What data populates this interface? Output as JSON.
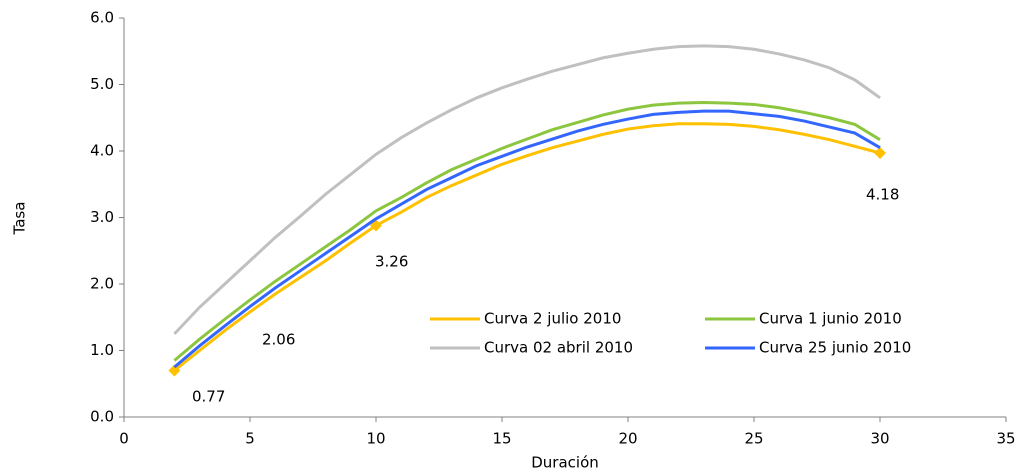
{
  "chart_data": {
    "type": "line",
    "x_label": "Duración",
    "y_label": "Tasa",
    "x": [
      2,
      3,
      4,
      5,
      6,
      7,
      8,
      9,
      10,
      11,
      12,
      13,
      14,
      15,
      16,
      17,
      18,
      19,
      20,
      21,
      22,
      23,
      24,
      25,
      26,
      27,
      28,
      29,
      30
    ],
    "series": [
      {
        "name": "Curva 2 julio 2010",
        "color": "#ffc000",
        "markers_at": [
          2,
          10,
          30
        ],
        "values": [
          0.7,
          1.0,
          1.3,
          1.58,
          1.85,
          2.1,
          2.35,
          2.62,
          2.88,
          3.08,
          3.3,
          3.48,
          3.64,
          3.8,
          3.93,
          4.05,
          4.15,
          4.25,
          4.33,
          4.38,
          4.41,
          4.41,
          4.4,
          4.37,
          4.32,
          4.25,
          4.17,
          4.07,
          3.97
        ]
      },
      {
        "name": "Curva 1 junio 2010",
        "color": "#8cc63f",
        "values": [
          0.85,
          1.17,
          1.47,
          1.76,
          2.04,
          2.3,
          2.56,
          2.82,
          3.1,
          3.3,
          3.52,
          3.72,
          3.88,
          4.04,
          4.18,
          4.32,
          4.43,
          4.54,
          4.63,
          4.69,
          4.72,
          4.73,
          4.72,
          4.7,
          4.65,
          4.58,
          4.5,
          4.4,
          4.17
        ]
      },
      {
        "name": "Curva 02 abril 2010",
        "color": "#c0c0c0",
        "values": [
          1.25,
          1.65,
          2.0,
          2.35,
          2.7,
          3.02,
          3.35,
          3.65,
          3.95,
          4.2,
          4.42,
          4.62,
          4.8,
          4.95,
          5.08,
          5.2,
          5.3,
          5.4,
          5.47,
          5.53,
          5.57,
          5.58,
          5.57,
          5.53,
          5.46,
          5.37,
          5.25,
          5.07,
          4.8
        ]
      },
      {
        "name": "Curva 25 junio 2010",
        "color": "#3366ff",
        "values": [
          0.75,
          1.07,
          1.37,
          1.66,
          1.94,
          2.2,
          2.46,
          2.72,
          2.98,
          3.2,
          3.42,
          3.6,
          3.78,
          3.92,
          4.06,
          4.18,
          4.3,
          4.4,
          4.48,
          4.55,
          4.58,
          4.6,
          4.6,
          4.56,
          4.52,
          4.45,
          4.36,
          4.27,
          4.05
        ]
      }
    ],
    "annotations": [
      "0.77",
      "2.06",
      "3.26",
      "4.18"
    ],
    "xlim": [
      0,
      35
    ],
    "xticks": [
      0,
      5,
      10,
      15,
      20,
      25,
      30,
      35
    ],
    "ylim": [
      0,
      6
    ],
    "yticks": [
      {
        "value": 0,
        "label": "0.0"
      },
      {
        "value": 1,
        "label": "1.0"
      },
      {
        "value": 2,
        "label": "2.0"
      },
      {
        "value": 3,
        "label": "3.0"
      },
      {
        "value": 4,
        "label": "4.0"
      },
      {
        "value": 5,
        "label": "5.0"
      },
      {
        "value": 6,
        "label": "6.0"
      }
    ],
    "grid": false
  }
}
